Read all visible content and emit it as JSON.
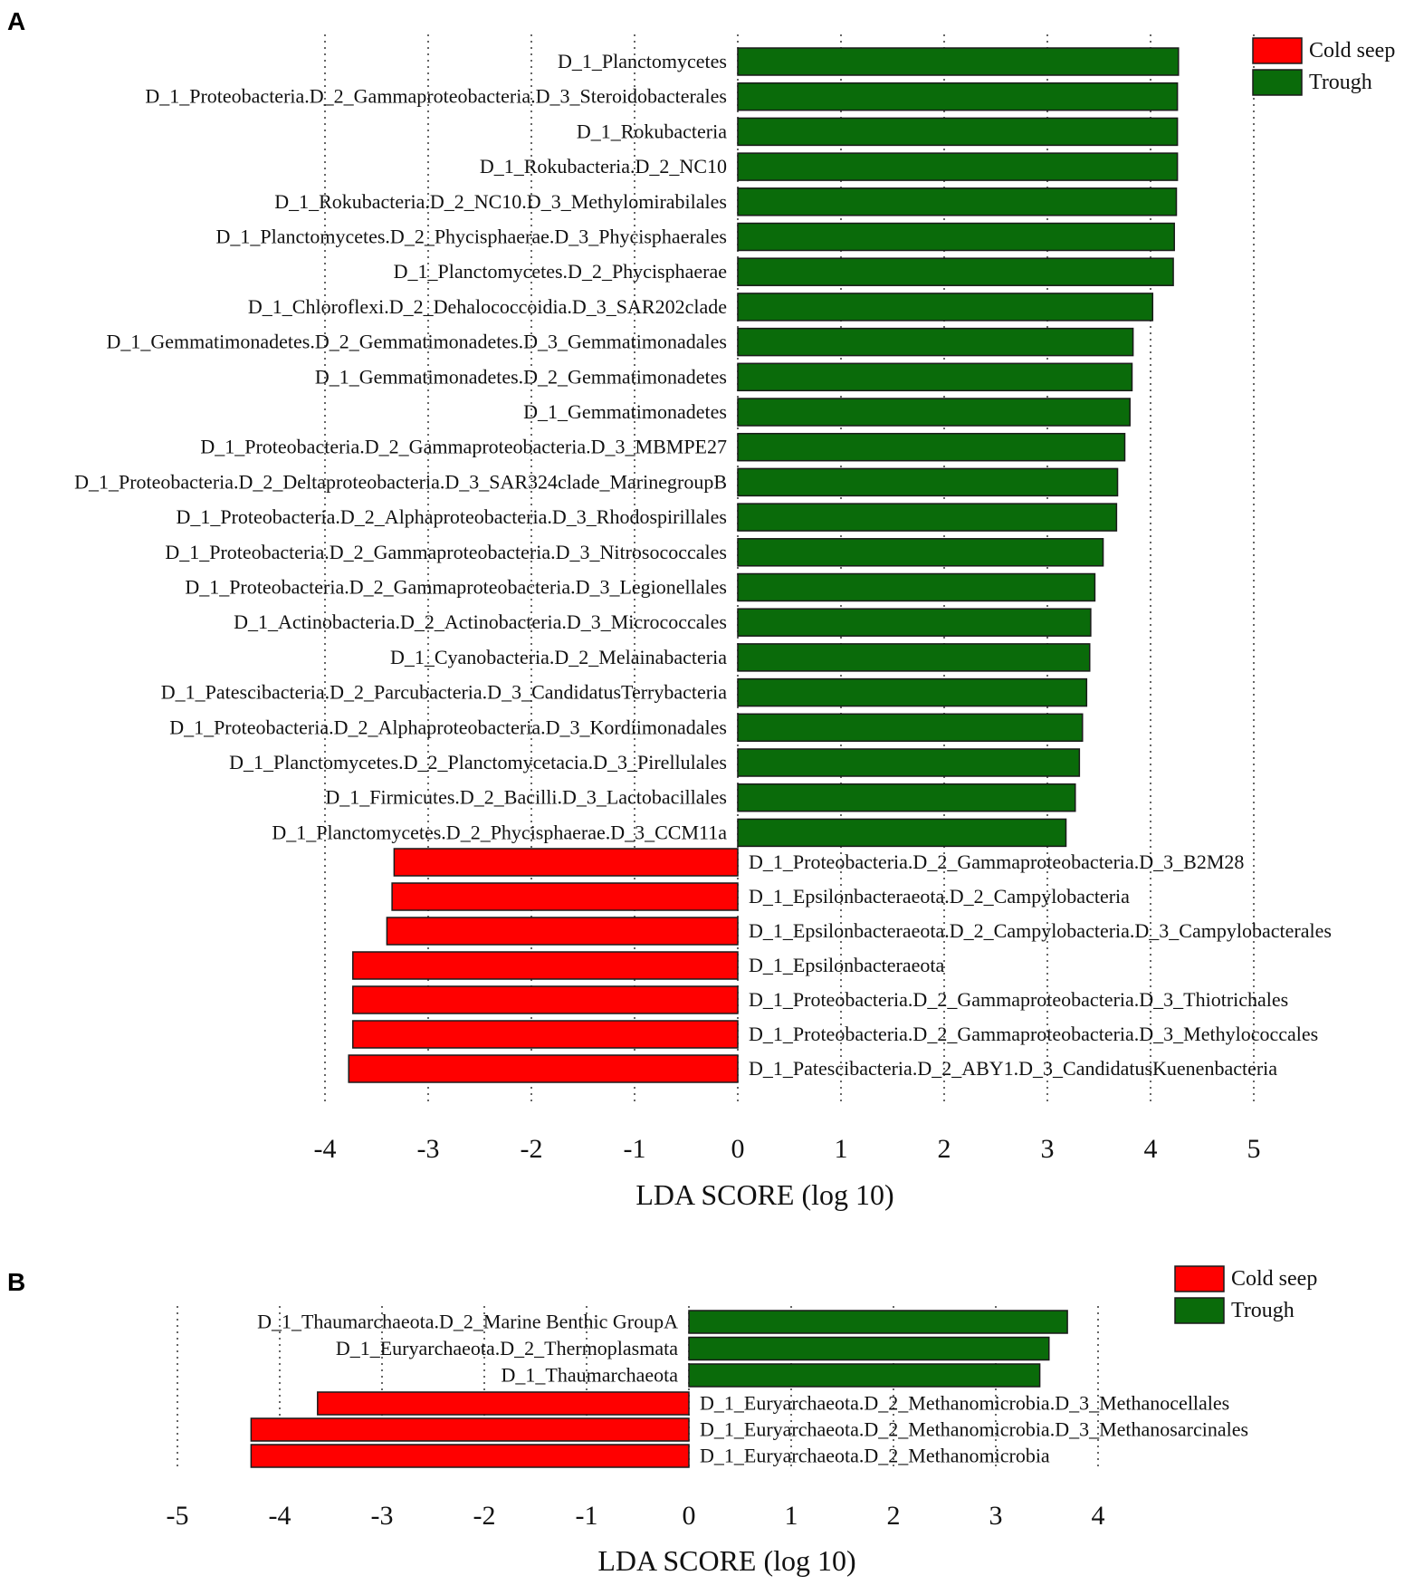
{
  "panel_labels": [
    "A",
    "B"
  ],
  "colors": {
    "cold_seep": "#ff0000",
    "trough": "#0a6b0a",
    "bar_edge": "#1a1a1a",
    "grid": "#333333"
  },
  "chart_data": [
    {
      "type": "bar",
      "orientation": "horizontal",
      "panel": "A",
      "xlabel": "LDA SCORE (log 10)",
      "xticks": [
        -4,
        -3,
        -2,
        -1,
        0,
        1,
        2,
        3,
        4,
        5
      ],
      "legend": [
        "Cold seep",
        "Trough"
      ],
      "legend_position": "top-right",
      "series": [
        {
          "name": "Trough",
          "color": "#0a6b0a",
          "categories": [
            "D_1_Planctomycetes",
            "D_1_Proteobacteria.D_2_Gammaproteobacteria.D_3_Steroidobacterales",
            "D_1_Rokubacteria",
            "D_1_Rokubacteria.D_2_NC10",
            "D_1_Rokubacteria.D_2_NC10.D_3_Methylomirabilales",
            "D_1_Planctomycetes.D_2_Phycisphaerae.D_3_Phycisphaerales",
            "D_1_Planctomycetes.D_2_Phycisphaerae",
            "D_1_Chloroflexi.D_2_Dehalococcoidia.D_3_SAR202clade",
            "D_1_Gemmatimonadetes.D_2_Gemmatimonadetes.D_3_Gemmatimonadales",
            "D_1_Gemmatimonadetes.D_2_Gemmatimonadetes",
            "D_1_Gemmatimonadetes",
            "D_1_Proteobacteria.D_2_Gammaproteobacteria.D_3_MBMPE27",
            "D_1_Proteobacteria.D_2_Deltaproteobacteria.D_3_SAR324clade_MarinegroupB",
            "D_1_Proteobacteria.D_2_Alphaproteobacteria.D_3_Rhodospirillales",
            "D_1_Proteobacteria.D_2_Gammaproteobacteria.D_3_Nitrosococcales",
            "D_1_Proteobacteria.D_2_Gammaproteobacteria.D_3_Legionellales",
            "D_1_Actinobacteria.D_2_Actinobacteria.D_3_Micrococcales",
            "D_1_Cyanobacteria.D_2_Melainabacteria",
            "D_1_Patescibacteria.D_2_Parcubacteria.D_3_CandidatusTerrybacteria",
            "D_1_Proteobacteria.D_2_Alphaproteobacteria.D_3_Kordiimonadales",
            "D_1_Planctomycetes.D_2_Planctomycetacia.D_3_Pirellulales",
            "D_1_Firmicutes.D_2_Bacilli.D_3_Lactobacillales",
            "D_1_Planctomycetes.D_2_Phycisphaerae.D_3_CCM11a"
          ],
          "values": [
            4.27,
            4.26,
            4.26,
            4.26,
            4.25,
            4.23,
            4.22,
            4.02,
            3.83,
            3.82,
            3.8,
            3.75,
            3.68,
            3.67,
            3.54,
            3.46,
            3.42,
            3.41,
            3.38,
            3.34,
            3.31,
            3.27,
            3.18
          ]
        },
        {
          "name": "Cold seep",
          "color": "#ff0000",
          "categories": [
            "D_1_Proteobacteria.D_2_Gammaproteobacteria.D_3_B2M28",
            "D_1_Epsilonbacteraeota.D_2_Campylobacteria",
            "D_1_Epsilonbacteraeota.D_2_Campylobacteria.D_3_Campylobacterales",
            "D_1_Epsilonbacteraeota",
            "D_1_Proteobacteria.D_2_Gammaproteobacteria.D_3_Thiotrichales",
            "D_1_Proteobacteria.D_2_Gammaproteobacteria.D_3_Methylococcales",
            "D_1_Patescibacteria.D_2_ABY1.D_3_CandidatusKuenenbacteria"
          ],
          "values": [
            -3.33,
            -3.35,
            -3.4,
            -3.73,
            -3.73,
            -3.73,
            -3.77
          ]
        }
      ]
    },
    {
      "type": "bar",
      "orientation": "horizontal",
      "panel": "B",
      "xlabel": "LDA SCORE (log 10)",
      "xticks": [
        -5,
        -4,
        -3,
        -2,
        -1,
        0,
        1,
        2,
        3,
        4
      ],
      "legend": [
        "Cold seep",
        "Trough"
      ],
      "legend_position": "top-right",
      "series": [
        {
          "name": "Trough",
          "color": "#0a6b0a",
          "categories": [
            "D_1_Thaumarchaeota.D_2_Marine Benthic GroupA",
            "D_1_Euryarchaeota.D_2_Thermoplasmata",
            "D_1_Thaumarchaeota"
          ],
          "values": [
            3.7,
            3.52,
            3.43
          ]
        },
        {
          "name": "Cold seep",
          "color": "#ff0000",
          "categories": [
            "D_1_Euryarchaeota.D_2_Methanomicrobia.D_3_Methanocellales",
            "D_1_Euryarchaeota.D_2_Methanomicrobia.D_3_Methanosarcinales",
            "D_1_Euryarchaeota.D_2_Methanomicrobia"
          ],
          "values": [
            -3.63,
            -4.28,
            -4.28
          ]
        }
      ]
    }
  ]
}
